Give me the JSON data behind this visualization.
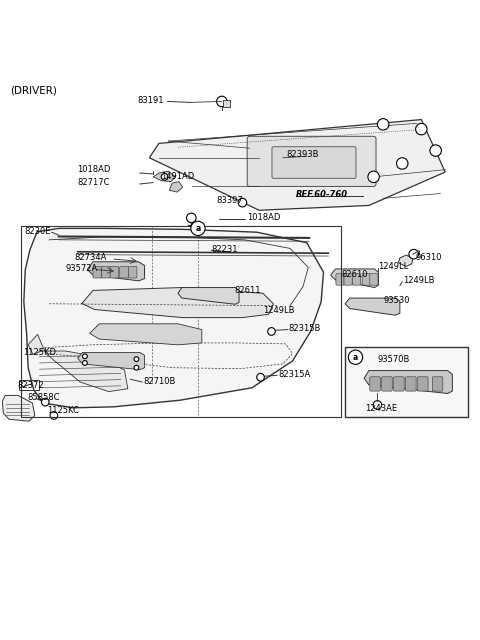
{
  "background_color": "#ffffff",
  "text_color": "#000000",
  "line_color": "#333333",
  "driver_label": "(DRIVER)",
  "ref_label": "REF.60-760",
  "circle_a_label": "a"
}
